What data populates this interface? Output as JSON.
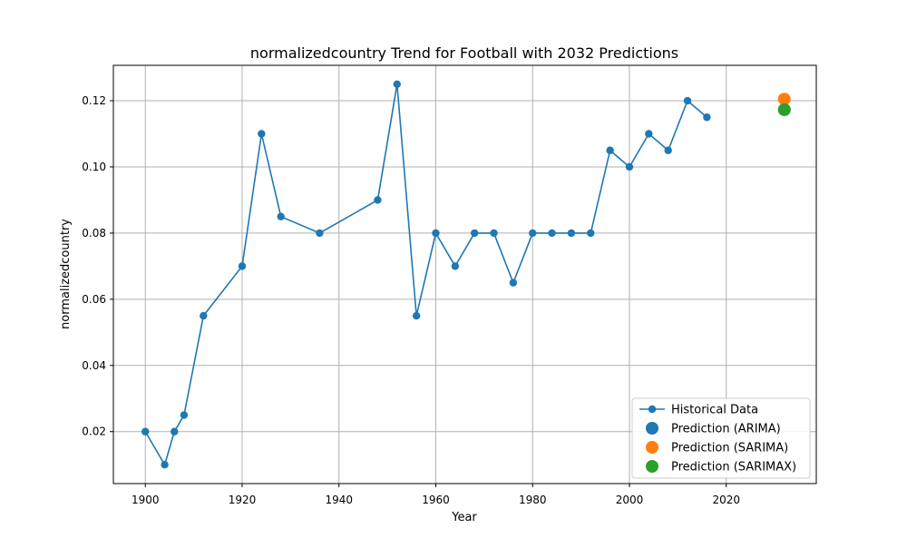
{
  "chart_data": {
    "type": "line",
    "title": "normalizedcountry Trend for Football with 2032 Predictions",
    "xlabel": "Year",
    "ylabel": "normalizedcountry",
    "xlim": [
      1893.4,
      2038.6
    ],
    "ylim": [
      0.0043,
      0.1307
    ],
    "x_ticks": [
      1900,
      1920,
      1940,
      1960,
      1980,
      2000,
      2020
    ],
    "y_ticks": [
      0.02,
      0.04,
      0.06,
      0.08,
      0.1,
      0.12
    ],
    "y_tick_labels": [
      "0.02",
      "0.04",
      "0.06",
      "0.08",
      "0.10",
      "0.12"
    ],
    "grid": true,
    "legend_position": "lower-right",
    "series": [
      {
        "name": "Historical Data",
        "kind": "line-marker",
        "color": "#1f77b4",
        "x": [
          1900,
          1904,
          1906,
          1908,
          1912,
          1920,
          1924,
          1928,
          1936,
          1948,
          1952,
          1956,
          1960,
          1964,
          1968,
          1972,
          1976,
          1980,
          1984,
          1988,
          1992,
          1996,
          2000,
          2004,
          2008,
          2012,
          2016
        ],
        "y": [
          0.02,
          0.01,
          0.02,
          0.025,
          0.055,
          0.07,
          0.11,
          0.085,
          0.08,
          0.09,
          0.125,
          0.055,
          0.08,
          0.07,
          0.08,
          0.08,
          0.065,
          0.08,
          0.08,
          0.08,
          0.08,
          0.105,
          0.1,
          0.11,
          0.105,
          0.12,
          0.115
        ]
      },
      {
        "name": "Prediction (ARIMA)",
        "kind": "point",
        "color": "#1f77b4",
        "x": [
          2032
        ],
        "y": [
          0.1173
        ]
      },
      {
        "name": "Prediction (SARIMA)",
        "kind": "point",
        "color": "#ff7f0e",
        "x": [
          2032
        ],
        "y": [
          0.1205
        ]
      },
      {
        "name": "Prediction (SARIMAX)",
        "kind": "point",
        "color": "#2ca02c",
        "x": [
          2032
        ],
        "y": [
          0.1173
        ]
      }
    ]
  }
}
